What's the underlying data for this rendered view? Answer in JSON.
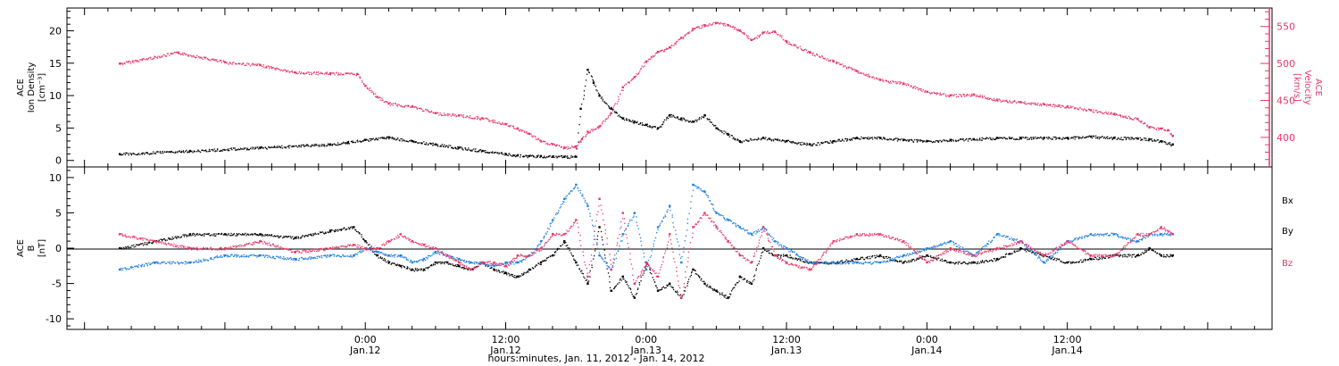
{
  "colors": {
    "black": "#000000",
    "red": "#e8386a",
    "blue": "#1e7fe0"
  },
  "chart_data": [
    {
      "type": "scatter",
      "panel": "top",
      "ylabel_left": [
        "ACE",
        "Ion Density",
        "[cm⁻³]"
      ],
      "ylabel_right": [
        "ACE",
        "Velocity",
        "[km/s]"
      ],
      "ylim_left": [
        -1,
        23.5
      ],
      "ylim_right": [
        360,
        575
      ],
      "yticks_left": [
        "0",
        "5",
        "10",
        "15",
        "20"
      ],
      "yticks_right": [
        "400",
        "450",
        "500",
        "550"
      ],
      "series": [
        {
          "color": "red",
          "axis": "right",
          "x": [
            -21,
            -16,
            -12,
            -9,
            -6,
            -3,
            -0.7,
            0,
            1,
            2,
            4,
            6,
            8,
            10,
            12,
            13,
            14,
            15,
            16,
            17,
            18,
            18.5,
            19,
            20,
            21,
            22,
            23,
            24,
            25,
            26,
            27,
            28,
            29,
            30,
            31,
            32,
            33,
            34,
            35,
            36,
            38,
            40,
            42,
            44,
            46,
            48,
            50,
            52,
            54,
            56,
            58,
            60,
            62,
            64,
            66,
            67,
            68,
            68.6,
            69
          ],
          "y": [
            500,
            515,
            502,
            498,
            488,
            487,
            486,
            470,
            455,
            446,
            442,
            433,
            430,
            426,
            418,
            412,
            405,
            395,
            391,
            386,
            388,
            398,
            408,
            415,
            433,
            468,
            482,
            503,
            516,
            522,
            535,
            547,
            552,
            555,
            552,
            545,
            532,
            542,
            543,
            530,
            515,
            503,
            490,
            478,
            473,
            462,
            457,
            458,
            451,
            448,
            445,
            442,
            437,
            432,
            425,
            414,
            412,
            410,
            402
          ]
        },
        {
          "color": "black",
          "axis": "left",
          "x": [
            -21,
            -15,
            -9,
            -3,
            -1.5,
            0,
            2,
            4,
            6,
            8,
            10,
            12,
            13,
            14,
            15,
            16,
            17,
            18,
            18.4,
            19,
            19.5,
            20,
            21,
            22,
            23,
            24,
            25,
            26,
            27,
            28,
            29,
            30,
            31,
            32,
            34,
            36,
            38,
            40,
            42,
            44,
            46,
            48,
            50,
            52,
            54,
            56,
            58,
            60,
            62,
            64,
            66,
            67,
            68,
            69
          ],
          "y": [
            1,
            1.5,
            2,
            2.5,
            2.8,
            3.2,
            3.6,
            3,
            2.5,
            2,
            1.5,
            1,
            0.8,
            0.7,
            0.7,
            0.6,
            0.6,
            0.6,
            8,
            14,
            12,
            10,
            8,
            6.5,
            6,
            5.5,
            5,
            7,
            6.5,
            6,
            7,
            5,
            4,
            3,
            3.5,
            3,
            2.5,
            3,
            3.5,
            3.5,
            3.2,
            3,
            3.2,
            3.3,
            3.5,
            3.5,
            3.5,
            3.5,
            3.7,
            3.5,
            3.4,
            3.3,
            3,
            2.5
          ]
        }
      ]
    },
    {
      "type": "scatter",
      "panel": "bottom",
      "ylabel_left": [
        "ACE",
        "B",
        "[nT]"
      ],
      "ylim": [
        -11.5,
        11.5
      ],
      "yticks": [
        "-10",
        "-5",
        "0",
        "5",
        "10"
      ],
      "legend": [
        "Bx",
        "By",
        "Bz"
      ],
      "series": [
        {
          "name": "Bx",
          "color": "black",
          "x": [
            -21,
            -18,
            -15,
            -12,
            -9,
            -6,
            -3,
            -1,
            0,
            1,
            2,
            3,
            4,
            5,
            6,
            7,
            8,
            9,
            10,
            11,
            12,
            13,
            14,
            15,
            16,
            17,
            18,
            19,
            20,
            21,
            22,
            23,
            24,
            25,
            26,
            27,
            28,
            29,
            30,
            31,
            32,
            33,
            34,
            35,
            36,
            38,
            40,
            42,
            44,
            46,
            48,
            50,
            52,
            54,
            56,
            58,
            60,
            62,
            64,
            66,
            67,
            68,
            69
          ],
          "y": [
            0,
            1,
            2,
            2,
            2,
            1.5,
            2.5,
            3,
            1,
            -1,
            -2,
            -2.5,
            -3,
            -3,
            -2,
            -2,
            -2.5,
            -3,
            -2,
            -3,
            -3.5,
            -4,
            -3,
            -2,
            -1,
            1,
            -2,
            -5,
            3,
            -6,
            -4,
            -7,
            -2,
            -6,
            -5,
            -7,
            -3,
            -5,
            -6,
            -7,
            -4,
            -5,
            0,
            -1,
            -1,
            -2,
            -2,
            -1.5,
            -1,
            -2,
            -1,
            -2,
            -2,
            -1.5,
            0,
            -1,
            -2,
            -1.5,
            -1,
            -1,
            0,
            -1,
            -1
          ]
        },
        {
          "name": "By",
          "color": "blue",
          "x": [
            -21,
            -18,
            -15,
            -12,
            -9,
            -6,
            -3,
            -1,
            0,
            1,
            2,
            3,
            4,
            5,
            6,
            7,
            8,
            9,
            10,
            11,
            12,
            13,
            14,
            15,
            16,
            17,
            18,
            19,
            20,
            21,
            22,
            23,
            24,
            25,
            26,
            27,
            28,
            29,
            30,
            31,
            32,
            33,
            34,
            35,
            36,
            38,
            40,
            42,
            44,
            46,
            48,
            50,
            52,
            54,
            56,
            58,
            60,
            62,
            64,
            66,
            67,
            68,
            69
          ],
          "y": [
            -3,
            -2,
            -2,
            -1,
            -1,
            -1.5,
            -1,
            -1,
            0,
            -0.5,
            -1,
            -1,
            -2,
            -1.5,
            -0.5,
            -1,
            -1.5,
            -2,
            -2,
            -2.5,
            -2,
            -2,
            -1,
            1,
            4,
            7,
            9,
            6,
            -1,
            -3,
            2,
            5,
            -3,
            3,
            6,
            -2,
            9,
            8,
            5,
            4,
            3,
            2,
            3,
            1,
            0,
            -2,
            -2,
            -2,
            -2,
            -1,
            0,
            1,
            -1,
            2,
            1,
            -2,
            1,
            2,
            2,
            1,
            2,
            2,
            2
          ]
        },
        {
          "name": "Bz",
          "color": "red",
          "x": [
            -21,
            -18,
            -15,
            -12,
            -9,
            -6,
            -3,
            -1,
            0,
            1,
            2,
            3,
            4,
            5,
            6,
            7,
            8,
            9,
            10,
            11,
            12,
            13,
            14,
            15,
            16,
            17,
            18,
            19,
            20,
            21,
            22,
            23,
            24,
            25,
            26,
            27,
            28,
            29,
            30,
            31,
            32,
            33,
            34,
            35,
            36,
            38,
            40,
            42,
            44,
            46,
            48,
            50,
            52,
            54,
            56,
            58,
            60,
            62,
            64,
            66,
            67,
            68,
            69
          ],
          "y": [
            2,
            1,
            0,
            0,
            1,
            -0.5,
            0,
            0.5,
            0,
            0,
            1,
            2,
            1,
            0.5,
            0,
            -1,
            -2,
            -3,
            -2,
            -2,
            -2.5,
            -1,
            -1,
            0,
            2,
            2,
            4,
            -4,
            7,
            -3,
            5,
            -5,
            -2,
            -4,
            2,
            -7,
            3,
            5,
            3,
            1,
            -1,
            -2,
            3,
            -1,
            -2,
            -3,
            1,
            2,
            2,
            1,
            -2,
            0,
            -1,
            0,
            1,
            -1,
            1,
            -1,
            -1,
            2,
            2,
            3,
            2
          ]
        }
      ]
    }
  ],
  "xaxis": {
    "title": "hours:minutes, Jan. 11, 2012 - Jan. 14, 2012",
    "range_hours": [
      -25.5,
      77.5
    ],
    "tick_labels": [
      {
        "hour": 0,
        "time": "0:00",
        "date": "Jan.12"
      },
      {
        "hour": 12,
        "time": "12:00",
        "date": "Jan.12"
      },
      {
        "hour": 24,
        "time": "0:00",
        "date": "Jan.13"
      },
      {
        "hour": 36,
        "time": "12:00",
        "date": "Jan.13"
      },
      {
        "hour": 48,
        "time": "0:00",
        "date": "Jan.14"
      },
      {
        "hour": 60,
        "time": "12:00",
        "date": "Jan.14"
      }
    ]
  }
}
